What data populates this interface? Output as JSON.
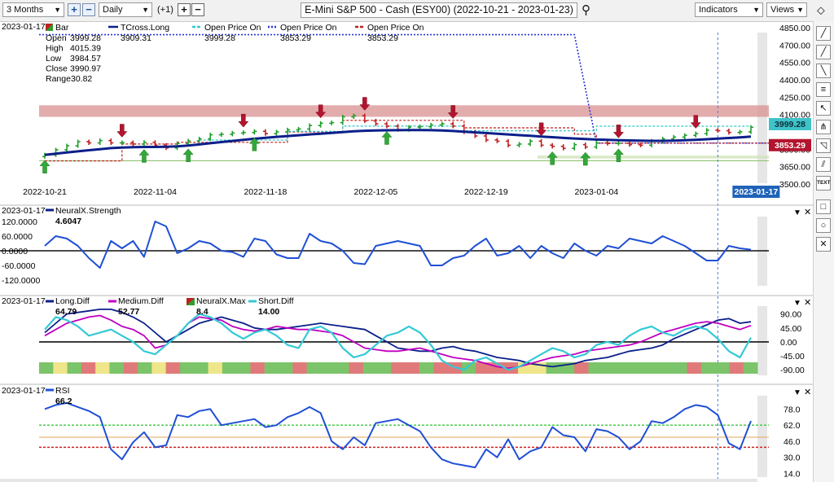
{
  "toolbar": {
    "period": "3 Months",
    "interval": "Daily",
    "offset": "(+1)",
    "title": "E-Mini S&P 500 - Cash (ESY00) (2022-10-21 - 2023-01-23)",
    "indicators_label": "Indicators",
    "views_label": "Views"
  },
  "price_panel": {
    "date": "2023-01-17",
    "bar_label": "Bar",
    "ohlc": [
      {
        "label": "Open",
        "value": "3999.28"
      },
      {
        "label": "High",
        "value": "4015.39"
      },
      {
        "label": "Low",
        "value": "3984.57"
      },
      {
        "label": "Close",
        "value": "3990.97"
      },
      {
        "label": "Range",
        "value": "30.82"
      }
    ],
    "legend": [
      {
        "name": "TCross.Long",
        "value": "3909.31",
        "color": "#0b1f8a",
        "style": "solid"
      },
      {
        "name": "Open Price On",
        "value": "3999.28",
        "color": "#33c9c9",
        "style": "dashed"
      },
      {
        "name": "Open Price On",
        "value": "3853.29",
        "color": "#2a34d8",
        "style": "dotted"
      },
      {
        "name": "Open Price On",
        "value": "3853.29",
        "color": "#c01f1f",
        "style": "dashed"
      }
    ],
    "price_tags": [
      {
        "value": "3999.28",
        "color": "#3ec3c9"
      },
      {
        "value": "3853.29",
        "color": "#b3142e"
      }
    ],
    "date_tag": "2023-01-17"
  },
  "neural_panel": {
    "date": "2023-01-17",
    "name": "NeuralX.Strength",
    "value": "4.6047"
  },
  "diff_panel": {
    "date": "2023-01-17",
    "legend": [
      {
        "name": "Long.Diff",
        "value": "64.79",
        "color": "#0b1f8a"
      },
      {
        "name": "Medium.Diff",
        "value": "52.77",
        "color": "#c000c0"
      },
      {
        "name": "NeuralX.Max",
        "value": "8.4",
        "color": "#2e9e2e"
      },
      {
        "name": "Short.Diff",
        "value": "14.00",
        "color": "#33c9d6"
      }
    ]
  },
  "rsi_panel": {
    "date": "2023-01-17",
    "name": "RSI",
    "value": "66.2"
  },
  "sidebar": [
    {
      "icon": "line-tool-icon",
      "glyph": "╱"
    },
    {
      "icon": "line-tool-icon",
      "glyph": "╱"
    },
    {
      "icon": "ray-tool-icon",
      "glyph": "╲"
    },
    {
      "icon": "fib-tool-icon",
      "glyph": "≡"
    },
    {
      "icon": "arrow-tool-icon",
      "glyph": "↖"
    },
    {
      "icon": "pitchfork-tool-icon",
      "glyph": "⋔"
    },
    {
      "icon": "shape-tool-icon",
      "glyph": "◹"
    },
    {
      "icon": "channel-tool-icon",
      "glyph": "⫽"
    },
    {
      "icon": "text-tool-icon",
      "glyph": "TEXT"
    },
    {
      "icon": "rectangle-tool-icon",
      "glyph": "□"
    },
    {
      "icon": "circle-tool-icon",
      "glyph": "○"
    },
    {
      "icon": "cross-tool-icon",
      "glyph": "✕"
    }
  ],
  "chart_data": [
    {
      "type": "candlestick",
      "title": "E-Mini S&P 500 - Cash (ESY00) (2022-10-21 - 2023-01-23)",
      "x_tick_labels": [
        "2022-10-21",
        "2022-11-04",
        "2022-11-18",
        "2022-12-05",
        "2022-12-19",
        "2023-01-04"
      ],
      "y_tick_labels": [
        "4850.00",
        "4700.00",
        "4550.00",
        "4400.00",
        "4250.00",
        "4100.00",
        "3800.00",
        "3650.00",
        "3500.00"
      ],
      "ylim": [
        3500,
        4850
      ],
      "close": [
        3752,
        3795,
        3830,
        3865,
        3855,
        3875,
        3855,
        3858,
        3845,
        3860,
        3835,
        3812,
        3850,
        3872,
        3890,
        3925,
        3930,
        3940,
        3945,
        3955,
        3935,
        3950,
        3968,
        3975,
        4005,
        4025,
        4030,
        4080,
        4090,
        4045,
        4020,
        4000,
        3970,
        3990,
        3995,
        4010,
        4020,
        4000,
        3950,
        3915,
        3880,
        3870,
        3835,
        3845,
        3870,
        3835,
        3825,
        3808,
        3840,
        3820,
        3855,
        3850,
        3852,
        3840,
        3835,
        3870,
        3890,
        3905,
        3920,
        3935,
        3965,
        3960,
        3945,
        3950,
        3990
      ],
      "series": [
        {
          "name": "TCross.Long",
          "y": [
            3752,
            3762,
            3772,
            3782,
            3792,
            3800,
            3810,
            3815,
            3818,
            3820,
            3820,
            3822,
            3825,
            3832,
            3842,
            3852,
            3862,
            3872,
            3882,
            3891,
            3899,
            3907,
            3914,
            3921,
            3928,
            3934,
            3941,
            3948,
            3955,
            3960,
            3962,
            3964,
            3965,
            3966,
            3966,
            3965,
            3962,
            3958,
            3952,
            3946,
            3940,
            3934,
            3928,
            3922,
            3916,
            3910,
            3904,
            3898,
            3893,
            3888,
            3884,
            3881,
            3878,
            3876,
            3874,
            3873,
            3873,
            3875,
            3878,
            3882,
            3887,
            3892,
            3897,
            3903,
            3909
          ]
        },
        {
          "name": "Open Price On",
          "y": [
            3999.28
          ]
        },
        {
          "name": "Open Price On",
          "y": [
            4790,
            3853.29
          ]
        },
        {
          "name": "Open Price On",
          "y": [
            3853.29
          ]
        }
      ],
      "resistance_zone": [
        4080,
        4180
      ]
    },
    {
      "type": "line",
      "series_name": "NeuralX.Strength",
      "y_tick_labels": [
        "120.0000",
        "60.0000",
        "0.0000",
        "-60.0000",
        "-120.0000"
      ],
      "ylim": [
        -140,
        140
      ],
      "values": [
        20,
        60,
        50,
        20,
        -30,
        -70,
        40,
        10,
        40,
        -25,
        120,
        100,
        -10,
        10,
        40,
        30,
        0,
        -5,
        -25,
        50,
        40,
        -15,
        -30,
        -30,
        70,
        40,
        30,
        0,
        -50,
        -55,
        20,
        30,
        40,
        30,
        20,
        -60,
        -60,
        -30,
        -20,
        20,
        50,
        -20,
        -10,
        20,
        -30,
        20,
        -10,
        -30,
        30,
        0,
        -20,
        20,
        10,
        50,
        40,
        30,
        60,
        40,
        20,
        -10,
        -40,
        -40,
        20,
        10,
        4.6047
      ]
    },
    {
      "type": "line",
      "y_tick_labels": [
        "90.00",
        "45.00",
        "0.00",
        "-45.00",
        "-90.00"
      ],
      "ylim": [
        -100,
        110
      ],
      "series": [
        {
          "name": "Long.Diff",
          "values": [
            30,
            60,
            90,
            95,
            100,
            105,
            105,
            95,
            80,
            60,
            30,
            0,
            20,
            40,
            60,
            70,
            80,
            70,
            60,
            45,
            40,
            40,
            45,
            50,
            55,
            60,
            55,
            50,
            45,
            40,
            20,
            0,
            -20,
            -25,
            -30,
            -30,
            -20,
            -15,
            -25,
            -30,
            -40,
            -50,
            -55,
            -60,
            -70,
            -75,
            -80,
            -75,
            -70,
            -60,
            -55,
            -50,
            -40,
            -30,
            -25,
            -20,
            -10,
            10,
            25,
            40,
            55,
            70,
            75,
            60,
            64.79
          ]
        },
        {
          "name": "Medium.Diff",
          "values": [
            20,
            40,
            60,
            70,
            80,
            85,
            70,
            50,
            40,
            20,
            -20,
            -10,
            20,
            60,
            80,
            75,
            70,
            50,
            40,
            35,
            40,
            50,
            45,
            40,
            40,
            35,
            30,
            20,
            0,
            -20,
            -25,
            -30,
            -30,
            -25,
            -20,
            -30,
            -40,
            -50,
            -55,
            -60,
            -70,
            -80,
            -85,
            -80,
            -70,
            -60,
            -50,
            -45,
            -40,
            -30,
            -25,
            -20,
            -15,
            -10,
            0,
            15,
            30,
            40,
            50,
            60,
            65,
            60,
            50,
            40,
            52.77
          ]
        },
        {
          "name": "Short.Diff",
          "values": [
            40,
            80,
            70,
            50,
            20,
            30,
            40,
            20,
            0,
            -30,
            -40,
            -10,
            20,
            60,
            90,
            80,
            60,
            30,
            10,
            30,
            40,
            20,
            -10,
            -20,
            40,
            50,
            30,
            -20,
            -50,
            -40,
            -10,
            20,
            30,
            50,
            30,
            -10,
            -60,
            -80,
            -90,
            -60,
            -50,
            -70,
            -90,
            -80,
            -60,
            -40,
            -20,
            -30,
            -50,
            -40,
            -10,
            0,
            -10,
            20,
            40,
            50,
            30,
            20,
            40,
            50,
            40,
            10,
            -30,
            -50,
            14.0
          ]
        },
        {
          "name": "NeuralX.Max",
          "bands": [
            "green",
            "yellow",
            "green",
            "red",
            "yellow",
            "green",
            "red",
            "green",
            "yellow",
            "red",
            "green",
            "green",
            "yellow",
            "green",
            "green",
            "red",
            "green",
            "green",
            "red",
            "green",
            "green",
            "green",
            "red",
            "green",
            "green",
            "red",
            "red",
            "green",
            "red",
            "red",
            "green",
            "red",
            "red",
            "red",
            "yellow",
            "yellow",
            "green",
            "green",
            "red",
            "green",
            "green",
            "green",
            "green",
            "green",
            "green",
            "green",
            "red",
            "green",
            "green",
            "red",
            "green"
          ]
        }
      ]
    },
    {
      "type": "line",
      "series_name": "RSI",
      "y_tick_labels": [
        "78.0",
        "62.0",
        "46.0",
        "30.0",
        "14.0"
      ],
      "ylim": [
        12,
        88
      ],
      "reference_lines": [
        62,
        40
      ],
      "values": [
        78,
        82,
        84,
        80,
        76,
        70,
        38,
        28,
        45,
        55,
        40,
        42,
        72,
        70,
        76,
        78,
        62,
        64,
        66,
        68,
        60,
        62,
        70,
        74,
        80,
        74,
        46,
        38,
        50,
        42,
        64,
        66,
        68,
        62,
        56,
        40,
        28,
        24,
        22,
        20,
        38,
        30,
        48,
        28,
        36,
        40,
        60,
        52,
        50,
        36,
        58,
        56,
        50,
        38,
        46,
        66,
        64,
        70,
        78,
        82,
        80,
        72,
        44,
        38,
        66.2
      ]
    }
  ]
}
